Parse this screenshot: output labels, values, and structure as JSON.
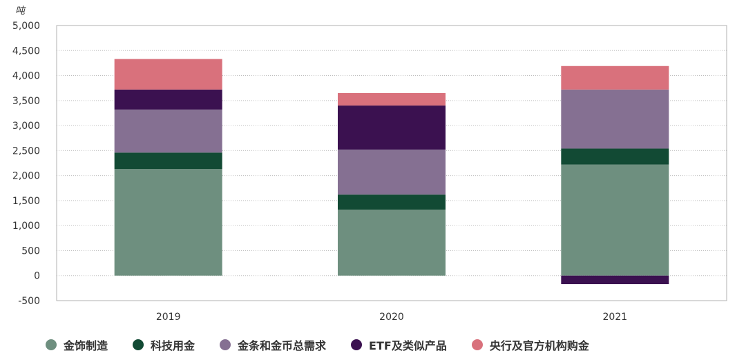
{
  "chart_data": {
    "type": "bar",
    "stacked": true,
    "unit_label": "吨",
    "categories": [
      "2019",
      "2020",
      "2021"
    ],
    "ylim": [
      -500,
      5000
    ],
    "yticks": [
      "5,000",
      "4,500",
      "4,000",
      "3,500",
      "3,000",
      "2,500",
      "2,000",
      "1,500",
      "1,000",
      "500",
      "0",
      "-500"
    ],
    "ytick_values": [
      5000,
      4500,
      4000,
      3500,
      3000,
      2500,
      2000,
      1500,
      1000,
      500,
      0,
      -500
    ],
    "grid": "horizontal-dotted",
    "legend_position": "bottom",
    "series": [
      {
        "name": "金饰制造",
        "color": "#6e8f7f",
        "values": [
          2130,
          1320,
          2220
        ]
      },
      {
        "name": "科技用金",
        "color": "#124a34",
        "values": [
          330,
          300,
          320
        ]
      },
      {
        "name": "金条和金币总需求",
        "color": "#857092",
        "values": [
          860,
          900,
          1180
        ]
      },
      {
        "name": "ETF及类似产品",
        "color": "#3b1150",
        "values": [
          400,
          880,
          -170
        ]
      },
      {
        "name": "央行及官方机构购金",
        "color": "#d9717c",
        "values": [
          610,
          250,
          470
        ]
      }
    ]
  }
}
